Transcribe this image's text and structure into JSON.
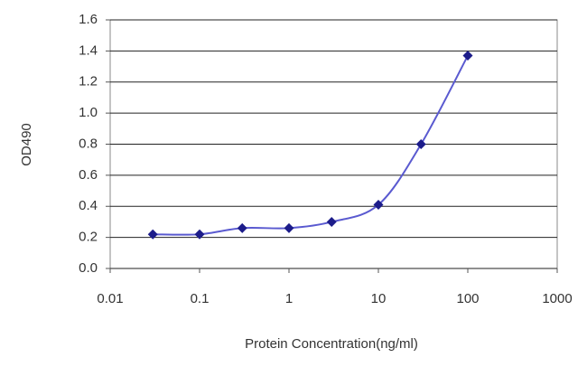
{
  "chart_data": {
    "type": "line",
    "x_label": "Protein Concentration(ng/ml)",
    "y_label": "OD490",
    "xscale": "log",
    "x": [
      0.03,
      0.1,
      0.3,
      1,
      3,
      10,
      30,
      100
    ],
    "series": [
      {
        "color": "#5a5ad0",
        "marker_color": "#1c1c8a",
        "values": [
          0.22,
          0.22,
          0.26,
          0.26,
          0.3,
          0.41,
          0.8,
          1.37
        ]
      }
    ],
    "xlim": [
      0.01,
      1000
    ],
    "xticks": [
      0.01,
      0.1,
      1,
      10,
      100,
      1000
    ],
    "ylim": [
      0,
      1.6
    ],
    "yticks": [
      {
        "value": 0,
        "label": "0.0"
      },
      0.2,
      0.4,
      0.6,
      0.8,
      {
        "value": 1,
        "label": "1.0"
      },
      1.2,
      1.4,
      1.6
    ],
    "grid": true
  }
}
